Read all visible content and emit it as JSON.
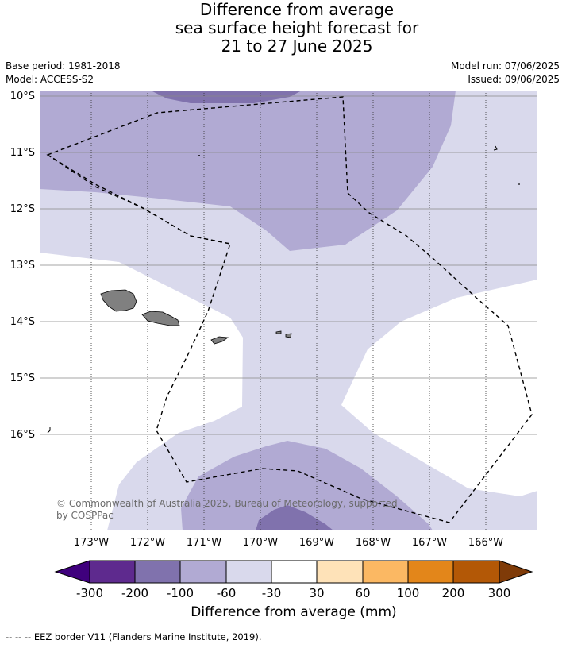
{
  "header": {
    "title_lines": [
      "Difference from average",
      "sea surface height forecast for",
      "21 to 27 June 2025"
    ],
    "base_period": "Base period: 1981-2018",
    "model": "Model: ACCESS-S2",
    "model_run": "Model run: 07/06/2025",
    "issued": "Issued: 09/06/2025"
  },
  "map": {
    "lat_labels": [
      "10°S",
      "11°S",
      "12°S",
      "13°S",
      "14°S",
      "15°S",
      "16°S"
    ],
    "lon_labels": [
      "173°W",
      "172°W",
      "171°W",
      "170°W",
      "169°W",
      "168°W",
      "167°W",
      "166°W"
    ],
    "copyright_line1": "© Commonwealth of Australia 2025, Bureau of Meteorology, supported",
    "copyright_line2": "by COSPPac",
    "land_color": "#808080"
  },
  "colorbar": {
    "ticks": [
      "-300",
      "-200",
      "-100",
      "-60",
      "-30",
      "30",
      "60",
      "100",
      "200",
      "300"
    ],
    "colors": [
      "#3f007d",
      "#5e2a8e",
      "#8072ad",
      "#b1aad3",
      "#d9d9ec",
      "#ffffff",
      "#fee2b8",
      "#fbb863",
      "#e3861a",
      "#b35806",
      "#7f3b08"
    ],
    "label": "Difference from average (mm)"
  },
  "legend": {
    "eez_text": "--  --  -- EEZ border V11 (Flanders Marine Institute, 2019)."
  }
}
